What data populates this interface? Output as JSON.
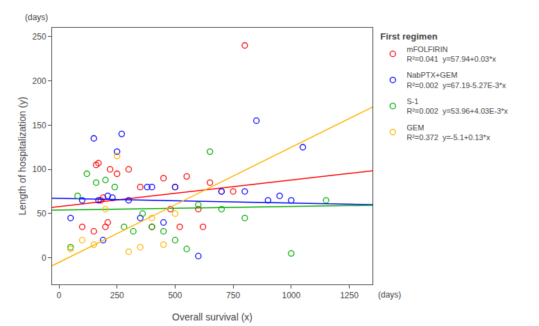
{
  "chart_data": {
    "type": "scatter",
    "xlabel": "Overall survival (x)",
    "ylabel": "Length of hospitalization (y)",
    "annotations": [
      {
        "text": "(days)",
        "axis": "x"
      },
      {
        "text": "(days)",
        "axis": "y"
      }
    ],
    "legend_title": "First regimen",
    "legend": "right",
    "grid": false,
    "marker": "circle-open",
    "xlim": [
      -30,
      1350
    ],
    "ylim": [
      -30,
      260
    ],
    "xticks": [
      0,
      250,
      500,
      750,
      1000,
      1250
    ],
    "yticks": [
      0,
      50,
      100,
      150,
      200,
      250
    ],
    "series": [
      {
        "name": "mFOLFIRIN",
        "color": "#FF0000",
        "r2": "R²=0.041",
        "equation": "y=57.94+0.03*x",
        "x": [
          100,
          150,
          160,
          170,
          180,
          190,
          200,
          210,
          220,
          250,
          300,
          350,
          400,
          450,
          480,
          500,
          520,
          550,
          600,
          620,
          650,
          700,
          750,
          800
        ],
        "values": [
          35,
          30,
          105,
          107,
          65,
          68,
          35,
          40,
          100,
          95,
          100,
          80,
          35,
          90,
          55,
          80,
          35,
          92,
          55,
          35,
          85,
          75,
          75,
          240
        ],
        "fit": {
          "x": [
            -30,
            1350
          ],
          "values": [
            57.04,
            98.44
          ]
        }
      },
      {
        "name": "NabPTX+GEM",
        "color": "#0000FF",
        "r2": "R²=0.002",
        "equation": "y=67.19-5.27E-3*x",
        "x": [
          50,
          100,
          150,
          170,
          190,
          210,
          230,
          250,
          270,
          300,
          350,
          380,
          400,
          450,
          500,
          600,
          700,
          800,
          850,
          900,
          950,
          1000,
          1050
        ],
        "values": [
          45,
          65,
          135,
          65,
          20,
          70,
          68,
          120,
          140,
          65,
          45,
          80,
          80,
          40,
          80,
          2,
          75,
          75,
          155,
          65,
          70,
          65,
          125
        ],
        "fit": {
          "x": [
            -30,
            1350
          ],
          "values": [
            67.3481,
            60.0755
          ]
        }
      },
      {
        "name": "S-1",
        "color": "#00AA00",
        "r2": "R²=0.002",
        "equation": "y=53.96+4.03E-3*x",
        "x": [
          50,
          80,
          120,
          160,
          200,
          240,
          280,
          320,
          360,
          400,
          450,
          500,
          550,
          600,
          650,
          700,
          800,
          1000,
          1150
        ],
        "values": [
          12,
          70,
          95,
          85,
          88,
          80,
          35,
          30,
          50,
          35,
          30,
          20,
          10,
          60,
          120,
          55,
          45,
          5,
          65
        ],
        "fit": {
          "x": [
            -30,
            1350
          ],
          "values": [
            53.8391,
            59.4005
          ]
        }
      },
      {
        "name": "GEM",
        "color": "#FFB300",
        "r2": "R²=0.372",
        "equation": "y=-5.1+0.13*x",
        "x": [
          50,
          100,
          150,
          200,
          250,
          300,
          350,
          400,
          450,
          500
        ],
        "values": [
          10,
          20,
          15,
          55,
          115,
          7,
          12,
          45,
          15,
          50
        ],
        "fit": {
          "x": [
            -30,
            1350
          ],
          "values": [
            -9.0,
            170.4
          ]
        }
      }
    ]
  }
}
